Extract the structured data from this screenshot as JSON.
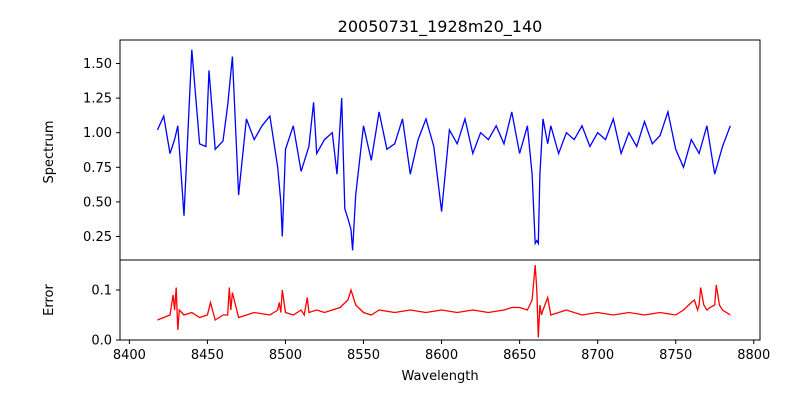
{
  "chart_data": [
    {
      "type": "line",
      "panel": "top",
      "title": "20050731_1928m20_140",
      "xlabel": "",
      "ylabel": "Spectrum",
      "xlim": [
        8394,
        8804
      ],
      "ylim": [
        0.08,
        1.67
      ],
      "grid": false,
      "color": "#0000ff",
      "ytick_labels": [
        "0.25",
        "0.50",
        "0.75",
        "1.00",
        "1.25",
        "1.50"
      ],
      "x": [
        8418,
        8422,
        8426,
        8429,
        8431,
        8435,
        8440,
        8445,
        8449,
        8451,
        8455,
        8460,
        8463,
        8466,
        8470,
        8475,
        8480,
        8485,
        8490,
        8495,
        8497,
        8498,
        8500,
        8505,
        8510,
        8515,
        8518,
        8520,
        8525,
        8530,
        8533,
        8536,
        8538,
        8540,
        8542,
        8543,
        8545,
        8550,
        8555,
        8560,
        8565,
        8570,
        8575,
        8580,
        8585,
        8590,
        8595,
        8600,
        8605,
        8610,
        8615,
        8620,
        8625,
        8630,
        8635,
        8640,
        8645,
        8650,
        8655,
        8658,
        8660,
        8661,
        8662,
        8663,
        8665,
        8668,
        8670,
        8675,
        8680,
        8685,
        8690,
        8695,
        8700,
        8705,
        8710,
        8715,
        8720,
        8725,
        8730,
        8735,
        8740,
        8745,
        8750,
        8755,
        8760,
        8765,
        8770,
        8775,
        8780,
        8785
      ],
      "y": [
        1.02,
        1.12,
        0.85,
        0.95,
        1.05,
        0.4,
        1.6,
        0.92,
        0.9,
        1.45,
        0.88,
        0.94,
        1.2,
        1.55,
        0.55,
        1.1,
        0.95,
        1.05,
        1.12,
        0.75,
        0.5,
        0.25,
        0.88,
        1.05,
        0.72,
        0.9,
        1.22,
        0.85,
        0.95,
        1.0,
        0.7,
        1.25,
        0.45,
        0.38,
        0.3,
        0.15,
        0.55,
        1.05,
        0.8,
        1.15,
        0.88,
        0.92,
        1.1,
        0.7,
        0.95,
        1.1,
        0.9,
        0.43,
        1.02,
        0.92,
        1.1,
        0.85,
        1.0,
        0.95,
        1.05,
        0.92,
        1.15,
        0.85,
        1.05,
        0.7,
        0.2,
        0.22,
        0.2,
        0.7,
        1.1,
        0.92,
        1.05,
        0.85,
        1.0,
        0.95,
        1.05,
        0.9,
        1.0,
        0.95,
        1.1,
        0.85,
        1.0,
        0.9,
        1.08,
        0.92,
        0.98,
        1.15,
        0.88,
        0.75,
        0.95,
        0.85,
        1.05,
        0.7,
        0.9,
        1.05
      ]
    },
    {
      "type": "line",
      "panel": "bottom",
      "title": "",
      "xlabel": "Wavelength",
      "ylabel": "Error",
      "xlim": [
        8394,
        8804
      ],
      "ylim": [
        0.0,
        0.16
      ],
      "grid": false,
      "color": "#ff0000",
      "ytick_labels": [
        "0.0",
        "0.1"
      ],
      "xtick_labels": [
        "8400",
        "8450",
        "8500",
        "8550",
        "8600",
        "8650",
        "8700",
        "8750",
        "8800"
      ],
      "x": [
        8418,
        8422,
        8426,
        8428,
        8429,
        8430,
        8431,
        8432,
        8435,
        8440,
        8445,
        8450,
        8452,
        8455,
        8460,
        8463,
        8464,
        8465,
        8466,
        8470,
        8475,
        8480,
        8490,
        8495,
        8496,
        8497,
        8498,
        8500,
        8505,
        8510,
        8512,
        8514,
        8515,
        8520,
        8525,
        8530,
        8535,
        8540,
        8542,
        8543,
        8545,
        8550,
        8555,
        8560,
        8570,
        8580,
        8590,
        8600,
        8610,
        8620,
        8630,
        8640,
        8645,
        8650,
        8655,
        8658,
        8660,
        8661,
        8662,
        8663,
        8664,
        8665,
        8668,
        8670,
        8675,
        8680,
        8690,
        8700,
        8710,
        8720,
        8730,
        8740,
        8750,
        8755,
        8760,
        8762,
        8764,
        8765,
        8766,
        8768,
        8770,
        8772,
        8775,
        8776,
        8778,
        8780,
        8785
      ],
      "y": [
        0.04,
        0.045,
        0.05,
        0.09,
        0.06,
        0.105,
        0.02,
        0.06,
        0.05,
        0.055,
        0.045,
        0.05,
        0.075,
        0.04,
        0.05,
        0.05,
        0.105,
        0.06,
        0.095,
        0.045,
        0.05,
        0.055,
        0.05,
        0.06,
        0.075,
        0.055,
        0.1,
        0.055,
        0.05,
        0.06,
        0.05,
        0.085,
        0.055,
        0.06,
        0.055,
        0.06,
        0.065,
        0.08,
        0.1,
        0.09,
        0.07,
        0.055,
        0.05,
        0.06,
        0.055,
        0.06,
        0.055,
        0.06,
        0.055,
        0.06,
        0.055,
        0.06,
        0.065,
        0.065,
        0.06,
        0.08,
        0.15,
        0.1,
        0.005,
        0.07,
        0.05,
        0.06,
        0.085,
        0.05,
        0.055,
        0.06,
        0.05,
        0.055,
        0.05,
        0.055,
        0.05,
        0.055,
        0.05,
        0.06,
        0.075,
        0.08,
        0.06,
        0.07,
        0.105,
        0.07,
        0.06,
        0.065,
        0.07,
        0.11,
        0.07,
        0.06,
        0.05
      ]
    }
  ]
}
